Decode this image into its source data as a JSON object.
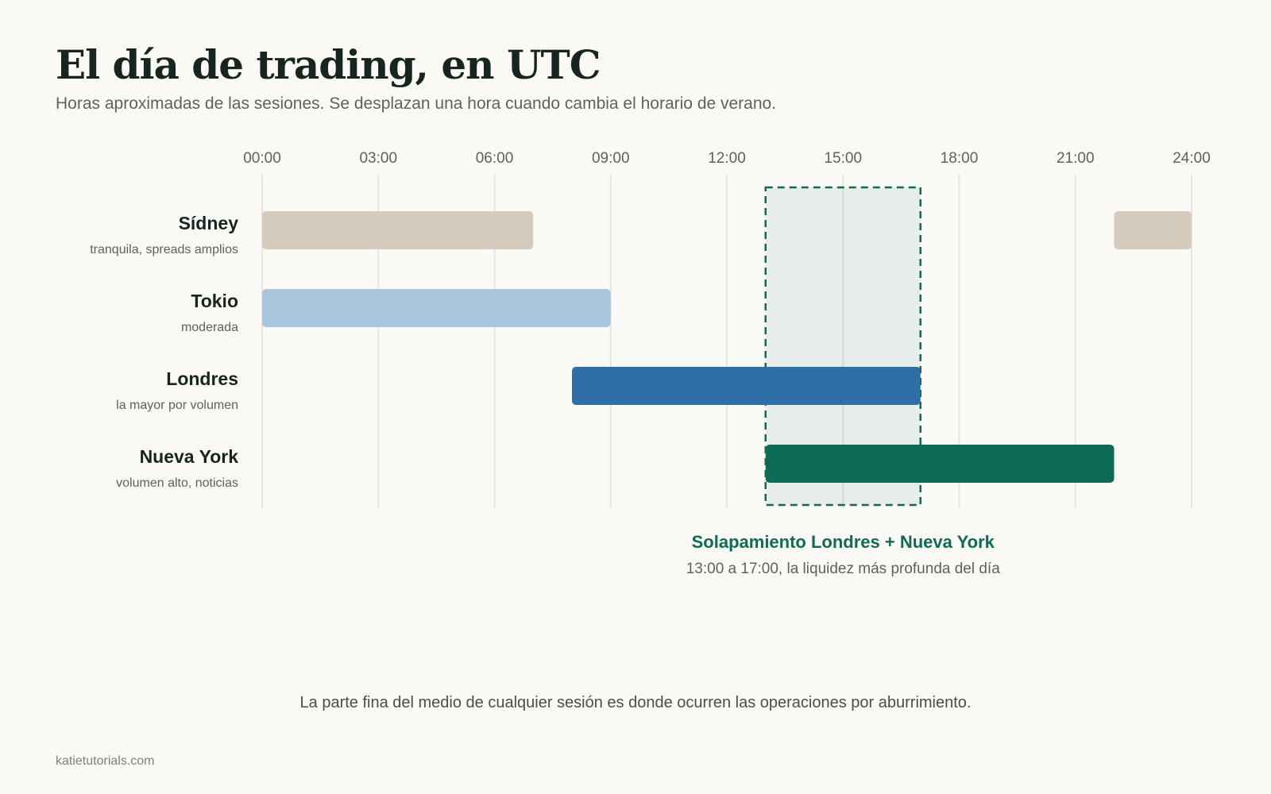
{
  "header": {
    "title": "El día de trading, en UTC",
    "subtitle": "Horas aproximadas de las sesiones. Se desplazan una hora cuando cambia el horario de verano."
  },
  "chart_data": {
    "type": "bar",
    "orientation": "horizontal-range",
    "x_range_hours": [
      0,
      24
    ],
    "x_ticks": [
      {
        "value": 0,
        "label": "00:00"
      },
      {
        "value": 3,
        "label": "03:00"
      },
      {
        "value": 6,
        "label": "06:00"
      },
      {
        "value": 9,
        "label": "09:00"
      },
      {
        "value": 12,
        "label": "12:00"
      },
      {
        "value": 15,
        "label": "15:00"
      },
      {
        "value": 18,
        "label": "18:00"
      },
      {
        "value": 21,
        "label": "21:00"
      },
      {
        "value": 24,
        "label": "24:00"
      }
    ],
    "grid": true,
    "sessions": [
      {
        "name": "Sídney",
        "note": "tranquila, spreads amplios",
        "color": "#d4cbbd",
        "segments": [
          [
            0,
            7
          ],
          [
            22,
            24
          ]
        ]
      },
      {
        "name": "Tokio",
        "note": "moderada",
        "color": "#aac5de",
        "segments": [
          [
            0,
            9
          ]
        ]
      },
      {
        "name": "Londres",
        "note": "la mayor por volumen",
        "color": "#2f6ea6",
        "segments": [
          [
            8,
            17
          ]
        ]
      },
      {
        "name": "Nueva York",
        "note": "volumen alto, noticias",
        "color": "#0d6b56",
        "segments": [
          [
            13,
            22
          ]
        ]
      }
    ],
    "overlap": {
      "start": 13,
      "end": 17,
      "title": "Solapamiento Londres + Nueva York",
      "subtitle": "13:00 a 17:00, la liquidez más profunda del día",
      "color": "#0d6b56"
    }
  },
  "footer": {
    "note": "La parte fina del medio de cualquier sesión es donde ocurren las operaciones por aburrimiento.",
    "brand": "katietutorials.com"
  }
}
